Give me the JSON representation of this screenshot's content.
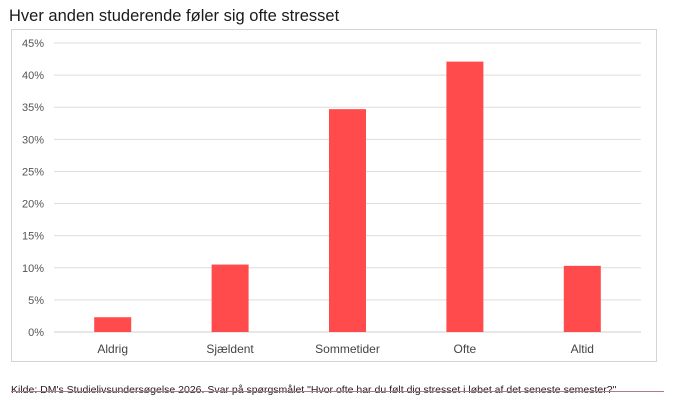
{
  "chart_data": {
    "type": "bar",
    "title": "Hver anden studerende føler sig ofte stresset",
    "categories": [
      "Aldrig",
      "Sjældent",
      "Sommetider",
      "Ofte",
      "Altid"
    ],
    "values": [
      2.3,
      10.5,
      34.7,
      42.1,
      10.3
    ],
    "ylim": [
      0,
      45
    ],
    "yticks": [
      "0%",
      "5%",
      "10%",
      "15%",
      "20%",
      "25%",
      "30%",
      "35%",
      "40%",
      "45%"
    ],
    "grid": true,
    "bar_color": "#ff4b4b",
    "source": "Kilde: DM's Studielivsundersøgelse 2026. Svar på spørgsmålet \"Hvor ofte har du følt dig stresset i løbet af det seneste semester?\""
  }
}
